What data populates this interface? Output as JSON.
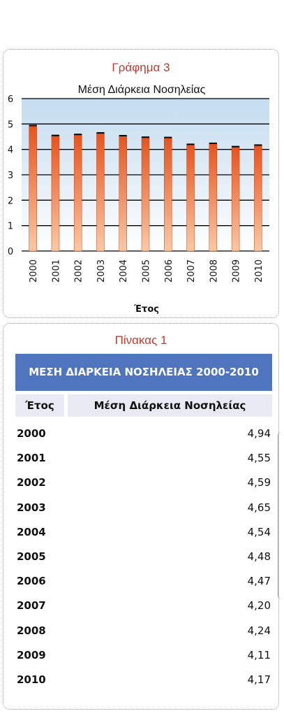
{
  "chart_panel": {
    "caption": "Γράφημα 3"
  },
  "chart_data": {
    "type": "bar",
    "title": "Μέση Διάρκεια Νοσηλείας",
    "xlabel": "Έτος",
    "ylabel": "",
    "categories": [
      "2000",
      "2001",
      "2002",
      "2003",
      "2004",
      "2005",
      "2006",
      "2007",
      "2008",
      "2009",
      "2010"
    ],
    "values": [
      4.94,
      4.55,
      4.59,
      4.65,
      4.54,
      4.48,
      4.47,
      4.2,
      4.24,
      4.11,
      4.17
    ],
    "ylim": [
      0,
      6
    ],
    "yticks": [
      "0",
      "1",
      "2",
      "3",
      "4",
      "5",
      "6"
    ],
    "grid": true,
    "colors": {
      "bar_top": "#e8531c",
      "bar_bottom": "#fbc9a5",
      "plot_bg_top": "#c3dcef",
      "plot_bg_bottom": "#ffffff"
    }
  },
  "table_panel": {
    "caption": "Πίνακας 1",
    "header": "ΜΕΣΗ ΔΙΑΡΚΕΙΑ ΝΟΣΗΛΕΙΑΣ 2000-2010",
    "columns": [
      "Έτος",
      "Μέση Διάρκεια Νοσηλείας"
    ],
    "rows": [
      {
        "year": "2000",
        "value": "4,94"
      },
      {
        "year": "2001",
        "value": "4,55"
      },
      {
        "year": "2002",
        "value": "4,59"
      },
      {
        "year": "2003",
        "value": "4,65"
      },
      {
        "year": "2004",
        "value": "4,54"
      },
      {
        "year": "2005",
        "value": "4,48"
      },
      {
        "year": "2006",
        "value": "4,47"
      },
      {
        "year": "2007",
        "value": "4,20"
      },
      {
        "year": "2008",
        "value": "4,24"
      },
      {
        "year": "2009",
        "value": "4,11"
      },
      {
        "year": "2010",
        "value": "4,17"
      }
    ],
    "header_color": "#4f75bf"
  }
}
